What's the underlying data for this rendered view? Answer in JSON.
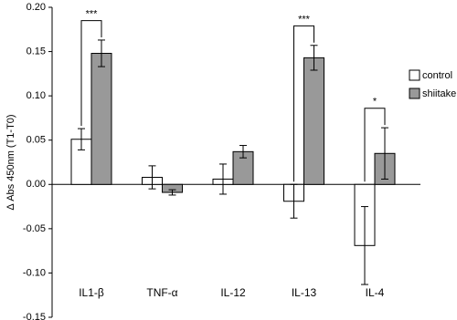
{
  "chart_data": {
    "type": "bar",
    "y_label": "Δ Abs 450nm (T1-T0)",
    "categories": [
      "IL1-β",
      "TNF-α",
      "IL-12",
      "IL-13",
      "IL-4"
    ],
    "series": [
      {
        "name": "control",
        "color": "#ffffff",
        "values": [
          0.051,
          0.008,
          0.006,
          -0.019,
          -0.069
        ],
        "errors": [
          0.012,
          0.013,
          0.017,
          0.019,
          0.044
        ]
      },
      {
        "name": "shiitake",
        "color": "#999999",
        "values": [
          0.148,
          -0.009,
          0.037,
          0.143,
          0.035
        ],
        "errors": [
          0.015,
          0.003,
          0.007,
          0.014,
          0.029
        ]
      }
    ],
    "ylim": [
      -0.15,
      0.2
    ],
    "yticks": [
      {
        "value": -0.15,
        "label": "-0.15"
      },
      {
        "value": -0.1,
        "label": "-0.10"
      },
      {
        "value": -0.05,
        "label": "-0.05"
      },
      {
        "value": 0,
        "label": "0.00"
      },
      {
        "value": 0.05,
        "label": "0.05"
      },
      {
        "value": 0.1,
        "label": "0.10"
      },
      {
        "value": 0.15,
        "label": "0.15"
      },
      {
        "value": 0.2,
        "label": "0.20"
      }
    ],
    "annotations": [
      {
        "category": 0,
        "text": "***"
      },
      {
        "category": 3,
        "text": "***"
      },
      {
        "category": 4,
        "text": "*"
      }
    ],
    "legend": "right"
  }
}
